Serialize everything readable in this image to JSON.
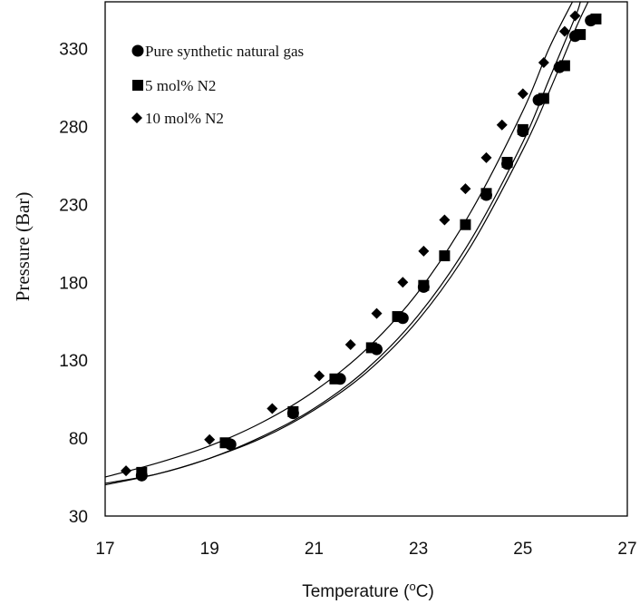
{
  "chart_data": {
    "type": "scatter",
    "xlabel": "Temperature (",
    "xlabel_sup": "o",
    "xlabel_end": "C)",
    "ylabel": "Pressure (Bar)",
    "xlim": [
      17,
      27
    ],
    "ylim": [
      30,
      360
    ],
    "x_ticks": [
      17,
      19,
      21,
      23,
      25,
      27
    ],
    "y_ticks": [
      30,
      80,
      130,
      180,
      230,
      280,
      330
    ],
    "grid": false,
    "legend_position": "top-left",
    "series": [
      {
        "name": "Pure synthetic natural gas",
        "marker": "circle",
        "points": [
          [
            17.7,
            56
          ],
          [
            19.4,
            76
          ],
          [
            20.6,
            96
          ],
          [
            21.5,
            118
          ],
          [
            22.2,
            137
          ],
          [
            22.7,
            157
          ],
          [
            23.1,
            177
          ],
          [
            24.3,
            236
          ],
          [
            24.7,
            256
          ],
          [
            25.0,
            277
          ],
          [
            25.3,
            297
          ],
          [
            25.7,
            318
          ],
          [
            26.0,
            338
          ],
          [
            26.3,
            348
          ]
        ],
        "fit": [
          [
            17.0,
            51
          ],
          [
            18.0,
            57
          ],
          [
            19.0,
            67
          ],
          [
            20.0,
            81
          ],
          [
            21.0,
            99
          ],
          [
            22.0,
            124
          ],
          [
            23.0,
            159
          ],
          [
            24.0,
            207
          ],
          [
            25.0,
            270
          ],
          [
            25.5,
            310
          ],
          [
            26.0,
            350
          ],
          [
            26.1,
            360
          ]
        ]
      },
      {
        "name": "5 mol% N2",
        "marker": "square",
        "points": [
          [
            17.7,
            58
          ],
          [
            19.3,
            77
          ],
          [
            20.6,
            97
          ],
          [
            21.4,
            118
          ],
          [
            22.1,
            138
          ],
          [
            22.6,
            158
          ],
          [
            23.1,
            178
          ],
          [
            23.5,
            197
          ],
          [
            23.9,
            217
          ],
          [
            24.3,
            237
          ],
          [
            24.7,
            257
          ],
          [
            25.0,
            278
          ],
          [
            25.4,
            298
          ],
          [
            25.8,
            319
          ],
          [
            26.1,
            339
          ],
          [
            26.4,
            349
          ]
        ],
        "fit": [
          [
            17.0,
            50
          ],
          [
            18.0,
            57
          ],
          [
            19.0,
            67
          ],
          [
            20.0,
            80
          ],
          [
            21.0,
            98
          ],
          [
            22.0,
            122
          ],
          [
            23.0,
            156
          ],
          [
            24.0,
            203
          ],
          [
            25.0,
            265
          ],
          [
            25.5,
            302
          ],
          [
            26.0,
            342
          ],
          [
            26.25,
            360
          ]
        ]
      },
      {
        "name": "10 mol% N2",
        "marker": "diamond",
        "points": [
          [
            17.4,
            59
          ],
          [
            19.0,
            79
          ],
          [
            20.2,
            99
          ],
          [
            21.1,
            120
          ],
          [
            21.7,
            140
          ],
          [
            22.2,
            160
          ],
          [
            22.7,
            180
          ],
          [
            23.1,
            200
          ],
          [
            23.5,
            220
          ],
          [
            23.9,
            240
          ],
          [
            24.3,
            260
          ],
          [
            24.6,
            281
          ],
          [
            25.0,
            301
          ],
          [
            25.4,
            321
          ],
          [
            25.8,
            341
          ],
          [
            26.0,
            351
          ]
        ],
        "fit": [
          [
            17.0,
            55
          ],
          [
            18.0,
            64
          ],
          [
            19.0,
            75
          ],
          [
            20.0,
            90
          ],
          [
            21.0,
            110
          ],
          [
            22.0,
            137
          ],
          [
            23.0,
            174
          ],
          [
            24.0,
            225
          ],
          [
            25.0,
            290
          ],
          [
            25.5,
            330
          ],
          [
            25.95,
            360
          ]
        ]
      }
    ]
  }
}
